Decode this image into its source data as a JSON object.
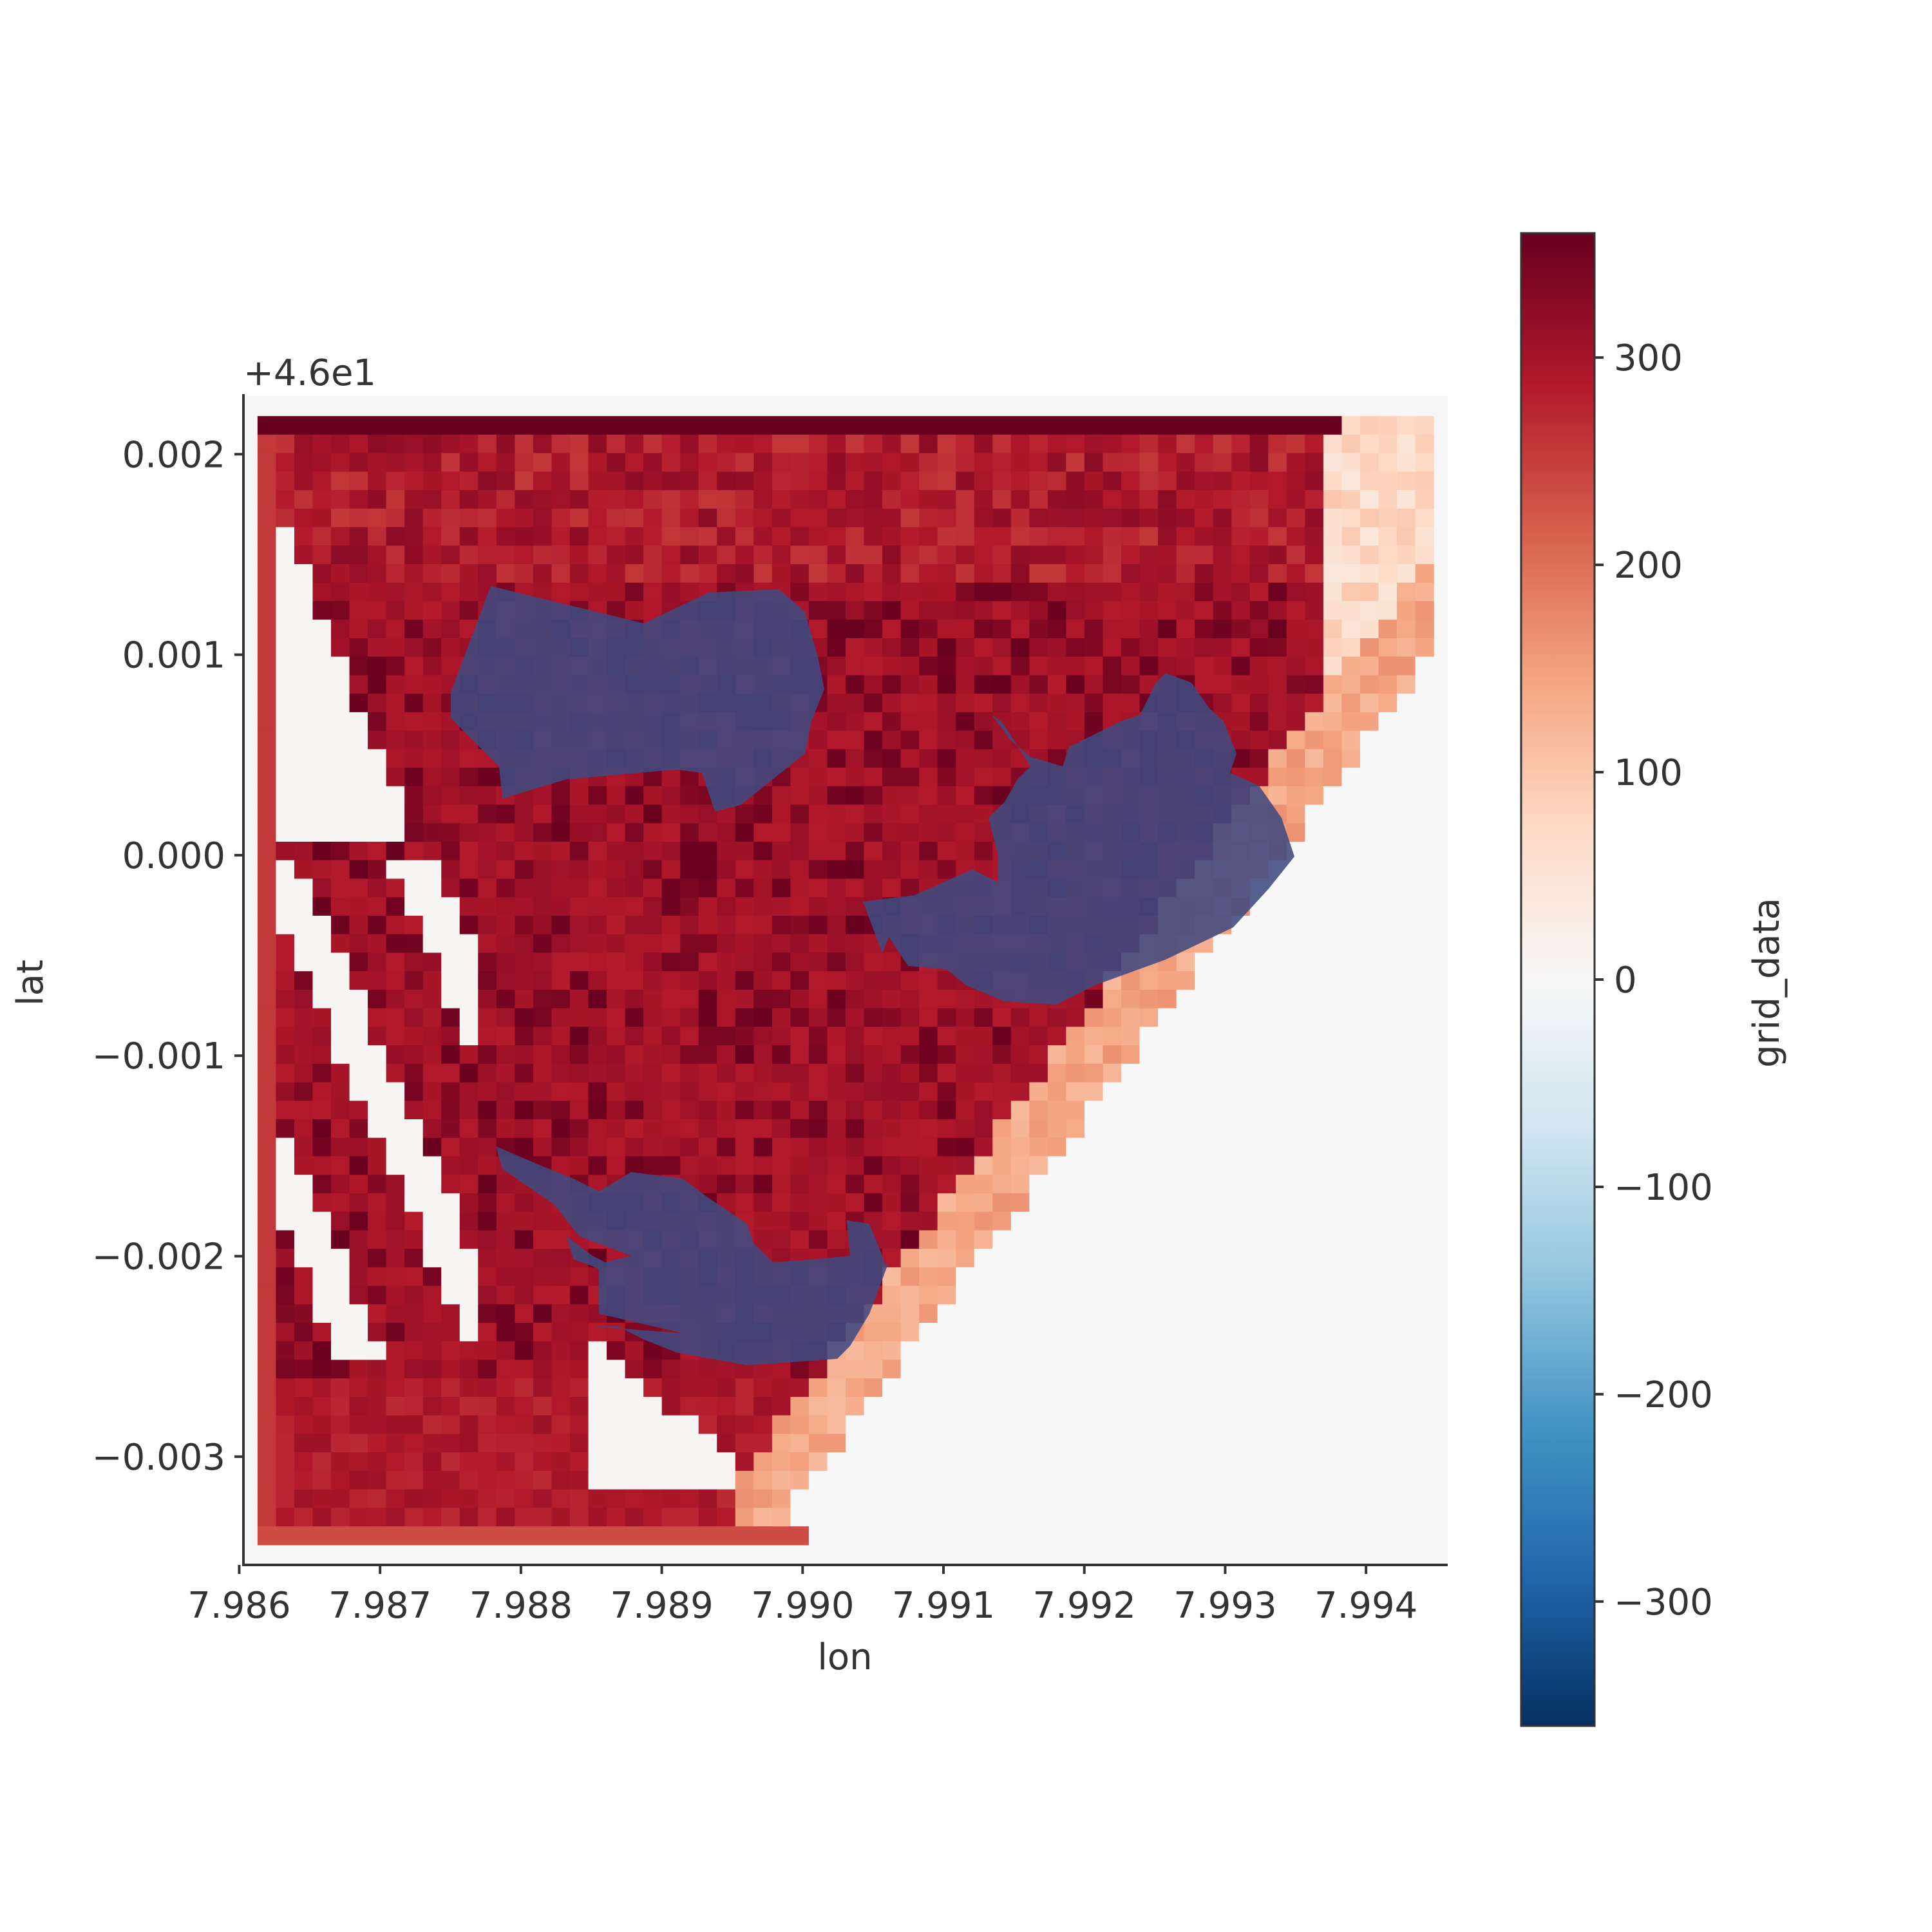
{
  "chart_data": {
    "type": "heatmap",
    "title": "",
    "xlabel": "lon",
    "ylabel": "lat",
    "y_offset_label": "+4.6e1",
    "xlim": [
      7.98603,
      7.99458
    ],
    "ylim": [
      -0.00354,
      0.00229
    ],
    "x_ticks": [
      7.986,
      7.987,
      7.988,
      7.989,
      7.99,
      7.991,
      7.992,
      7.993,
      7.994
    ],
    "x_tick_labels": [
      "7.986",
      "7.987",
      "7.988",
      "7.989",
      "7.990",
      "7.991",
      "7.992",
      "7.993",
      "7.994"
    ],
    "y_ticks": [
      0.002,
      0.001,
      0.0,
      -0.001,
      -0.002,
      -0.003
    ],
    "y_tick_labels": [
      "0.002",
      "0.001",
      "0.000",
      "−0.001",
      "−0.002",
      "−0.003"
    ],
    "colorbar": {
      "label": "grid_data",
      "colormap": "RdBu_r",
      "range": [
        -360,
        360
      ],
      "ticks": [
        300,
        200,
        100,
        0,
        -100,
        -200,
        -300
      ],
      "tick_labels": [
        "300",
        "200",
        "100",
        "0",
        "−100",
        "−200",
        "−300"
      ]
    },
    "grid_extent": {
      "lon": [
        7.98613,
        7.99448
      ],
      "lat": [
        -0.00344,
        0.00219
      ]
    },
    "grid_resolution": {
      "columns": 64,
      "rows": 61
    },
    "grid": false,
    "regions": [
      {
        "name": "background",
        "value": 0
      },
      {
        "name": "bottom edge band",
        "value": 235
      },
      {
        "name": "left edge column",
        "value": 255
      },
      {
        "name": "northern interior",
        "value": 290
      },
      {
        "name": "central interior",
        "value": 300
      },
      {
        "name": "southwest interior",
        "value": 290
      },
      {
        "name": "dark ridges",
        "value": 345
      },
      {
        "name": "top edge row",
        "value": 360
      },
      {
        "name": "white strips",
        "value": 5
      },
      {
        "name": "southeast band",
        "value": 140
      },
      {
        "name": "northeast band",
        "value": 70
      }
    ],
    "overlays": [
      {
        "name": "northwest lake",
        "color": "#404a80",
        "opacity": 0.88
      },
      {
        "name": "east lake",
        "color": "#404a80",
        "opacity": 0.88
      },
      {
        "name": "south lake",
        "color": "#404a80",
        "opacity": 0.88
      }
    ],
    "colors": {
      "axis": "#333333",
      "text": "#333333",
      "plot_background": "#f6f6f6"
    }
  }
}
